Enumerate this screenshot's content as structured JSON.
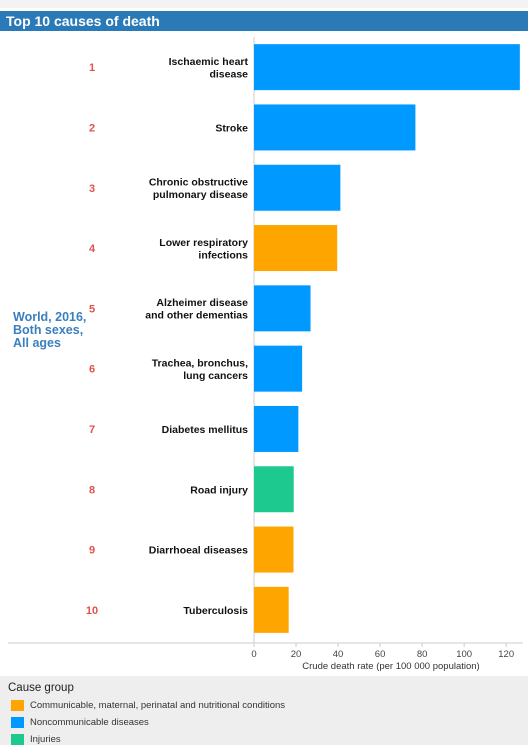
{
  "chart_data": {
    "type": "bar",
    "orientation": "horizontal",
    "title": "Top 10 causes of death",
    "region_label": "World, 2016, Both sexes, All ages",
    "xlabel": "Crude death rate (per 100 000 population)",
    "xlim": [
      0,
      128
    ],
    "xticks": [
      0,
      20,
      40,
      60,
      80,
      100,
      120
    ],
    "ranks": [
      "1",
      "2",
      "3",
      "4",
      "5",
      "6",
      "7",
      "8",
      "9",
      "10"
    ],
    "categories": [
      "Ischaemic heart disease",
      "Stroke",
      "Chronic obstructive pulmonary disease",
      "Lower respiratory infections",
      "Alzheimer disease and other dementias",
      "Trachea, bronchus, lung cancers",
      "Diabetes mellitus",
      "Road injury",
      "Diarrhoeal diseases",
      "Tuberculosis"
    ],
    "values": [
      126.5,
      76.8,
      41.1,
      39.6,
      26.9,
      22.9,
      21.1,
      18.9,
      18.8,
      16.5
    ],
    "groups": [
      "ncd",
      "ncd",
      "ncd",
      "cmpn",
      "ncd",
      "ncd",
      "ncd",
      "inj",
      "cmpn",
      "cmpn"
    ],
    "legend_placement": "bottom",
    "grid": false
  },
  "legend": {
    "title": "Cause group",
    "items": [
      {
        "key": "cmpn",
        "label": "Communicable, maternal, perinatal and nutritional conditions",
        "color": "#ffa500"
      },
      {
        "key": "ncd",
        "label": "Noncommunicable diseases",
        "color": "#0099ff"
      },
      {
        "key": "inj",
        "label": "Injuries",
        "color": "#1dc98f"
      }
    ]
  },
  "colors": {
    "title_bar": "#2a7ab8",
    "rank": "#e0524c",
    "region": "#3a7fc0"
  }
}
